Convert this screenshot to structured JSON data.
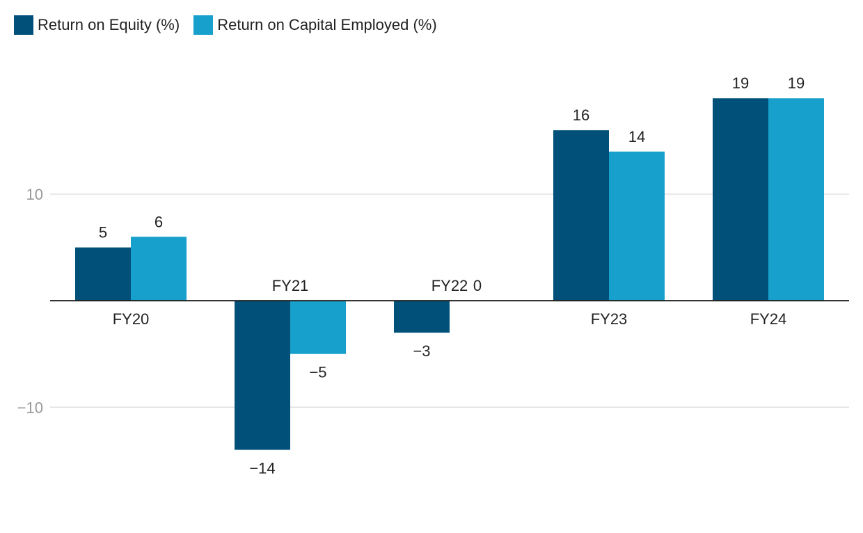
{
  "chart_data": {
    "type": "bar",
    "categories": [
      "FY20",
      "FY21",
      "FY22",
      "FY23",
      "FY24"
    ],
    "series": [
      {
        "name": "Return on Equity (%)",
        "color": "#00507a",
        "values": [
          5,
          -14,
          -3,
          16,
          19
        ],
        "labels": [
          "5",
          "−14",
          "−3",
          "16",
          "19"
        ]
      },
      {
        "name": "Return on Capital Employed (%)",
        "color": "#18a0cc",
        "values": [
          6,
          -5,
          0,
          14,
          19
        ],
        "labels": [
          "6",
          "−5",
          "0",
          "14",
          "19"
        ]
      }
    ],
    "y_ticks": [
      {
        "value": 10,
        "label": "10"
      },
      {
        "value": -10,
        "label": "−10"
      }
    ],
    "ylim": [
      -18.8,
      23.0
    ],
    "gridlines": true,
    "legend_position": "top-left",
    "title": "",
    "xlabel": "",
    "ylabel": ""
  }
}
